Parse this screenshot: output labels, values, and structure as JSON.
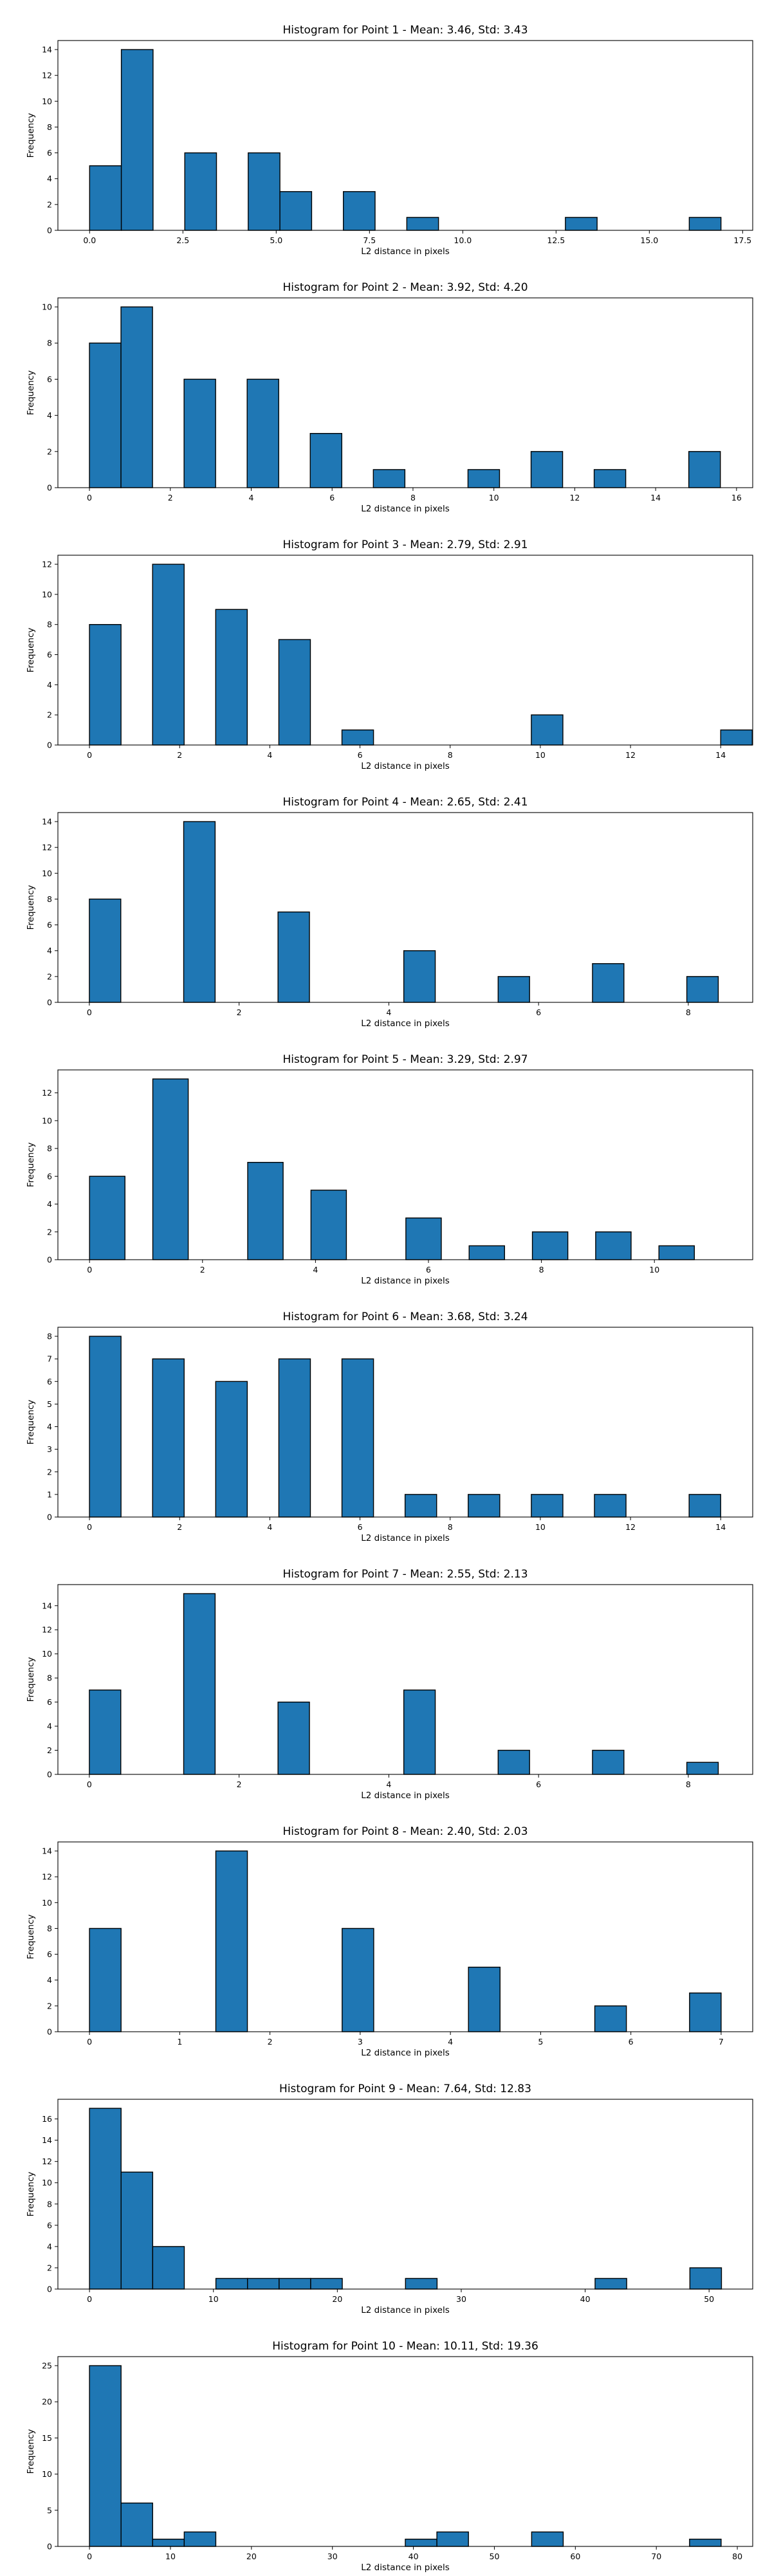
{
  "chart_data": [
    {
      "type": "bar",
      "title": "Histogram for Point 1 - Mean: 3.46, Std: 3.43",
      "xlabel": "L2 distance in pixels",
      "ylabel": "Frequency",
      "xlim": [
        -0.85,
        17.77
      ],
      "ylim": [
        0,
        14.7
      ],
      "xticks": [
        0.0,
        2.5,
        5.0,
        7.5,
        10.0,
        12.5,
        15.0,
        17.5
      ],
      "xtick_labels": [
        "0.0",
        "2.5",
        "5.0",
        "7.5",
        "10.0",
        "12.5",
        "15.0",
        "17.5"
      ],
      "yticks": [
        0,
        2,
        4,
        6,
        8,
        10,
        12,
        14
      ],
      "bins": [
        {
          "x0": 0.0,
          "x1": 0.85,
          "value": 5
        },
        {
          "x0": 0.85,
          "x1": 1.7,
          "value": 14
        },
        {
          "x0": 2.55,
          "x1": 3.4,
          "value": 6
        },
        {
          "x0": 4.25,
          "x1": 5.1,
          "value": 6
        },
        {
          "x0": 5.1,
          "x1": 5.95,
          "value": 3
        },
        {
          "x0": 6.8,
          "x1": 7.65,
          "value": 3
        },
        {
          "x0": 8.5,
          "x1": 9.35,
          "value": 1
        },
        {
          "x0": 12.75,
          "x1": 13.6,
          "value": 1
        },
        {
          "x0": 16.07,
          "x1": 16.92,
          "value": 1
        }
      ]
    },
    {
      "type": "bar",
      "title": "Histogram for Point 2 - Mean: 3.92, Std: 4.20",
      "xlabel": "L2 distance in pixels",
      "ylabel": "Frequency",
      "xlim": [
        -0.78,
        16.4
      ],
      "ylim": [
        0,
        10.5
      ],
      "xticks": [
        0,
        2,
        4,
        6,
        8,
        10,
        12,
        14,
        16
      ],
      "xtick_labels": [
        "0",
        "2",
        "4",
        "6",
        "8",
        "10",
        "12",
        "14",
        "16"
      ],
      "yticks": [
        0,
        2,
        4,
        6,
        8,
        10
      ],
      "bins": [
        {
          "x0": 0.0,
          "x1": 0.78,
          "value": 8
        },
        {
          "x0": 0.78,
          "x1": 1.56,
          "value": 10
        },
        {
          "x0": 2.34,
          "x1": 3.12,
          "value": 6
        },
        {
          "x0": 3.9,
          "x1": 4.68,
          "value": 6
        },
        {
          "x0": 5.46,
          "x1": 6.24,
          "value": 3
        },
        {
          "x0": 7.02,
          "x1": 7.8,
          "value": 1
        },
        {
          "x0": 9.36,
          "x1": 10.14,
          "value": 1
        },
        {
          "x0": 10.92,
          "x1": 11.7,
          "value": 2
        },
        {
          "x0": 12.48,
          "x1": 13.26,
          "value": 1
        },
        {
          "x0": 14.82,
          "x1": 15.6,
          "value": 2
        }
      ]
    },
    {
      "type": "bar",
      "title": "Histogram for Point 3 - Mean: 2.79, Std: 2.91",
      "xlabel": "L2 distance in pixels",
      "ylabel": "Frequency",
      "xlim": [
        -0.7,
        14.71
      ],
      "ylim": [
        0,
        12.6
      ],
      "xticks": [
        0,
        2,
        4,
        6,
        8,
        10,
        12,
        14
      ],
      "xtick_labels": [
        "0",
        "2",
        "4",
        "6",
        "8",
        "10",
        "12",
        "14"
      ],
      "yticks": [
        0,
        2,
        4,
        6,
        8,
        10,
        12
      ],
      "bins": [
        {
          "x0": 0.0,
          "x1": 1.0,
          "value": 8
        },
        {
          "x0": 2.0,
          "x1": 3.0,
          "value": 12
        },
        {
          "x0": 4.0,
          "x1": 5.0,
          "value": 9
        },
        {
          "x0": 6.0,
          "x1": 7.0,
          "value": 7
        },
        {
          "x0": 8.0,
          "x1": 9.0,
          "value": 1
        },
        {
          "x0": 14.0,
          "x1": 15.0,
          "value": 2
        },
        {
          "x0": 20.0,
          "x1": 21.0,
          "value": 1
        }
      ],
      "bin_scale": 0.7
    },
    {
      "type": "bar",
      "title": "Histogram for Point 4 - Mean: 2.65, Std: 2.41",
      "xlabel": "L2 distance in pixels",
      "ylabel": "Frequency",
      "xlim": [
        -0.42,
        8.86
      ],
      "ylim": [
        0,
        14.7
      ],
      "xticks": [
        0,
        2,
        4,
        6,
        8
      ],
      "xtick_labels": [
        "0",
        "2",
        "4",
        "6",
        "8"
      ],
      "yticks": [
        0,
        2,
        4,
        6,
        8,
        10,
        12,
        14
      ],
      "bins": [
        {
          "x0": 0.0,
          "x1": 0.42,
          "value": 8
        },
        {
          "x0": 1.26,
          "x1": 1.68,
          "value": 14
        },
        {
          "x0": 2.52,
          "x1": 2.94,
          "value": 7
        },
        {
          "x0": 4.2,
          "x1": 4.62,
          "value": 4
        },
        {
          "x0": 5.46,
          "x1": 5.88,
          "value": 2
        },
        {
          "x0": 6.72,
          "x1": 7.14,
          "value": 3
        },
        {
          "x0": 7.98,
          "x1": 8.4,
          "value": 2
        }
      ]
    },
    {
      "type": "bar",
      "title": "Histogram for Point 5 - Mean: 3.29, Std: 2.97",
      "xlabel": "L2 distance in pixels",
      "ylabel": "Frequency",
      "xlim": [
        -0.56,
        11.74
      ],
      "ylim": [
        0,
        13.65
      ],
      "xticks": [
        0,
        2,
        4,
        6,
        8,
        10
      ],
      "xtick_labels": [
        "0",
        "2",
        "4",
        "6",
        "8",
        "10"
      ],
      "yticks": [
        0,
        2,
        4,
        6,
        8,
        10,
        12
      ],
      "bins": [
        {
          "x0": 0.0,
          "x1": 0.56,
          "value": 6
        },
        {
          "x0": 1.0,
          "x1": 1.56,
          "value": 13
        },
        {
          "x0": 2.5,
          "x1": 3.06,
          "value": 7
        },
        {
          "x0": 3.5,
          "x1": 4.06,
          "value": 5
        },
        {
          "x0": 5.0,
          "x1": 5.56,
          "value": 3
        },
        {
          "x0": 6.0,
          "x1": 6.56,
          "value": 1
        },
        {
          "x0": 7.0,
          "x1": 7.56,
          "value": 2
        },
        {
          "x0": 8.0,
          "x1": 8.56,
          "value": 2
        },
        {
          "x0": 9.0,
          "x1": 9.56,
          "value": 1
        }
      ],
      "bin_scale": 1.12
    },
    {
      "type": "bar",
      "title": "Histogram for Point 6 - Mean: 3.68, Std: 3.24",
      "xlabel": "L2 distance in pixels",
      "ylabel": "Frequency",
      "xlim": [
        -0.7,
        14.71
      ],
      "ylim": [
        0,
        8.4
      ],
      "xticks": [
        0,
        2,
        4,
        6,
        8,
        10,
        12,
        14
      ],
      "xtick_labels": [
        "0",
        "2",
        "4",
        "6",
        "8",
        "10",
        "12",
        "14"
      ],
      "yticks": [
        0,
        1,
        2,
        3,
        4,
        5,
        6,
        7,
        8
      ],
      "bins": [
        {
          "x0": 0.0,
          "x1": 0.7,
          "value": 8
        },
        {
          "x0": 1.4,
          "x1": 2.1,
          "value": 7
        },
        {
          "x0": 2.8,
          "x1": 3.5,
          "value": 6
        },
        {
          "x0": 4.2,
          "x1": 4.9,
          "value": 7
        },
        {
          "x0": 5.6,
          "x1": 6.3,
          "value": 7
        },
        {
          "x0": 7.0,
          "x1": 7.7,
          "value": 1
        },
        {
          "x0": 8.4,
          "x1": 9.1,
          "value": 1
        },
        {
          "x0": 9.8,
          "x1": 10.5,
          "value": 1
        },
        {
          "x0": 11.2,
          "x1": 11.9,
          "value": 1
        },
        {
          "x0": 13.3,
          "x1": 14.0,
          "value": 1
        }
      ]
    },
    {
      "type": "bar",
      "title": "Histogram for Point 7 - Mean: 2.55, Std: 2.13",
      "xlabel": "L2 distance in pixels",
      "ylabel": "Frequency",
      "xlim": [
        -0.42,
        8.86
      ],
      "ylim": [
        0,
        15.75
      ],
      "xticks": [
        0,
        2,
        4,
        6,
        8
      ],
      "xtick_labels": [
        "0",
        "2",
        "4",
        "6",
        "8"
      ],
      "yticks": [
        0,
        2,
        4,
        6,
        8,
        10,
        12,
        14
      ],
      "bins": [
        {
          "x0": 0.0,
          "x1": 0.42,
          "value": 7
        },
        {
          "x0": 1.26,
          "x1": 1.68,
          "value": 15
        },
        {
          "x0": 2.52,
          "x1": 2.94,
          "value": 6
        },
        {
          "x0": 4.2,
          "x1": 4.62,
          "value": 7
        },
        {
          "x0": 5.46,
          "x1": 5.88,
          "value": 2
        },
        {
          "x0": 6.72,
          "x1": 7.14,
          "value": 2
        },
        {
          "x0": 7.98,
          "x1": 8.4,
          "value": 1
        }
      ]
    },
    {
      "type": "bar",
      "title": "Histogram for Point 8 - Mean: 2.40, Std: 2.03",
      "xlabel": "L2 distance in pixels",
      "ylabel": "Frequency",
      "xlim": [
        -0.35,
        7.35
      ],
      "ylim": [
        0,
        14.7
      ],
      "xticks": [
        0,
        1,
        2,
        3,
        4,
        5,
        6,
        7
      ],
      "xtick_labels": [
        "0",
        "1",
        "2",
        "3",
        "4",
        "5",
        "6",
        "7"
      ],
      "yticks": [
        0,
        2,
        4,
        6,
        8,
        10,
        12,
        14
      ],
      "bins": [
        {
          "x0": 0.0,
          "x1": 0.35,
          "value": 8
        },
        {
          "x0": 1.4,
          "x1": 1.75,
          "value": 14
        },
        {
          "x0": 2.8,
          "x1": 3.15,
          "value": 8
        },
        {
          "x0": 4.2,
          "x1": 4.55,
          "value": 5
        },
        {
          "x0": 5.6,
          "x1": 5.95,
          "value": 2
        },
        {
          "x0": 6.65,
          "x1": 7.0,
          "value": 3
        }
      ]
    },
    {
      "type": "bar",
      "title": "Histogram for Point 9 - Mean: 7.64, Std: 12.83",
      "xlabel": "L2 distance in pixels",
      "ylabel": "Frequency",
      "xlim": [
        -2.55,
        53.52
      ],
      "ylim": [
        0,
        17.85
      ],
      "xticks": [
        0,
        10,
        20,
        30,
        40,
        50
      ],
      "xtick_labels": [
        "0",
        "10",
        "20",
        "30",
        "40",
        "50"
      ],
      "yticks": [
        0,
        2,
        4,
        6,
        8,
        10,
        12,
        14,
        16
      ],
      "bins": [
        {
          "x0": 0.0,
          "x1": 2.55,
          "value": 17
        },
        {
          "x0": 2.55,
          "x1": 5.1,
          "value": 11
        },
        {
          "x0": 5.1,
          "x1": 7.65,
          "value": 4
        },
        {
          "x0": 10.2,
          "x1": 12.75,
          "value": 1
        },
        {
          "x0": 12.75,
          "x1": 15.3,
          "value": 1
        },
        {
          "x0": 15.3,
          "x1": 17.85,
          "value": 1
        },
        {
          "x0": 17.85,
          "x1": 20.4,
          "value": 1
        },
        {
          "x0": 25.5,
          "x1": 28.05,
          "value": 1
        },
        {
          "x0": 40.8,
          "x1": 43.35,
          "value": 1
        },
        {
          "x0": 48.45,
          "x1": 51.0,
          "value": 2
        }
      ]
    },
    {
      "type": "bar",
      "title": "Histogram for Point 10 - Mean: 10.11, Std: 19.36",
      "xlabel": "L2 distance in pixels",
      "ylabel": "Frequency",
      "xlim": [
        -3.9,
        81.9
      ],
      "ylim": [
        0,
        26.25
      ],
      "xticks": [
        0,
        10,
        20,
        30,
        40,
        50,
        60,
        70,
        80
      ],
      "xtick_labels": [
        "0",
        "10",
        "20",
        "30",
        "40",
        "50",
        "60",
        "70",
        "80"
      ],
      "yticks": [
        0,
        5,
        10,
        15,
        20,
        25
      ],
      "bins": [
        {
          "x0": 0.0,
          "x1": 3.9,
          "value": 25
        },
        {
          "x0": 3.9,
          "x1": 7.8,
          "value": 6
        },
        {
          "x0": 7.8,
          "x1": 11.7,
          "value": 1
        },
        {
          "x0": 11.7,
          "x1": 15.6,
          "value": 2
        },
        {
          "x0": 39.0,
          "x1": 42.9,
          "value": 1
        },
        {
          "x0": 42.9,
          "x1": 46.8,
          "value": 2
        },
        {
          "x0": 54.6,
          "x1": 58.5,
          "value": 2
        },
        {
          "x0": 74.1,
          "x1": 78.0,
          "value": 1
        }
      ]
    }
  ],
  "colors": {
    "bar_fill": "#1f77b4",
    "bar_edge": "#000000",
    "axes": "#000000",
    "text": "#000000",
    "background": "#ffffff"
  }
}
